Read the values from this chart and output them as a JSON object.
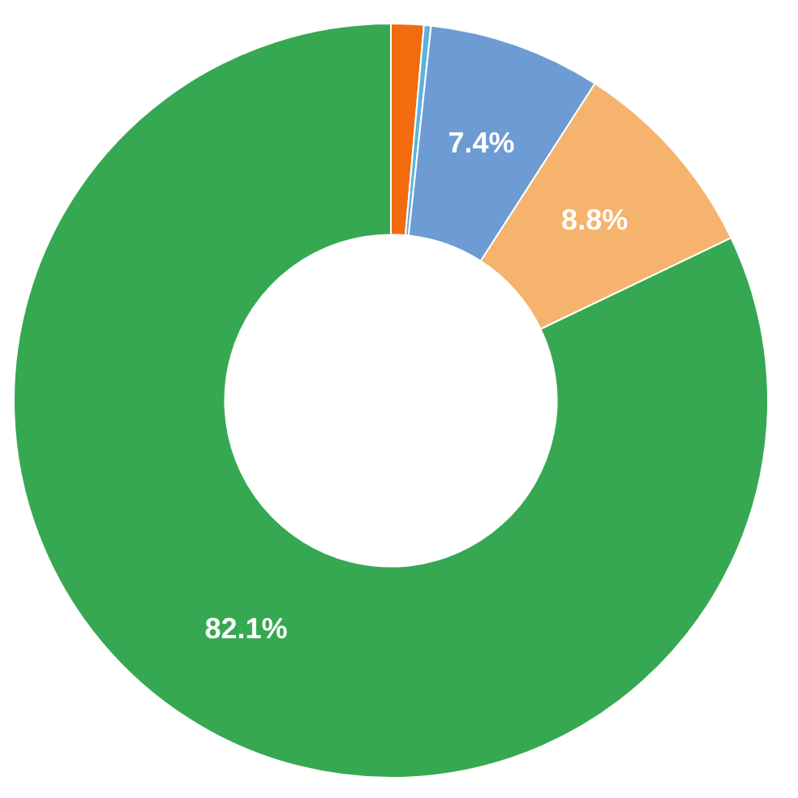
{
  "chart_data": {
    "type": "donut",
    "categories": [
      null,
      null,
      null,
      null,
      null
    ],
    "values": [
      1.4,
      0.3,
      7.4,
      8.8,
      82.1
    ],
    "colors": [
      "#f26b0f",
      "#5ab4dc",
      "#6d9bd3",
      "#f5b36e",
      "#36a852"
    ],
    "value_labels": [
      null,
      null,
      "7.4%",
      "8.8%",
      "82.1%"
    ],
    "legend": false
  }
}
